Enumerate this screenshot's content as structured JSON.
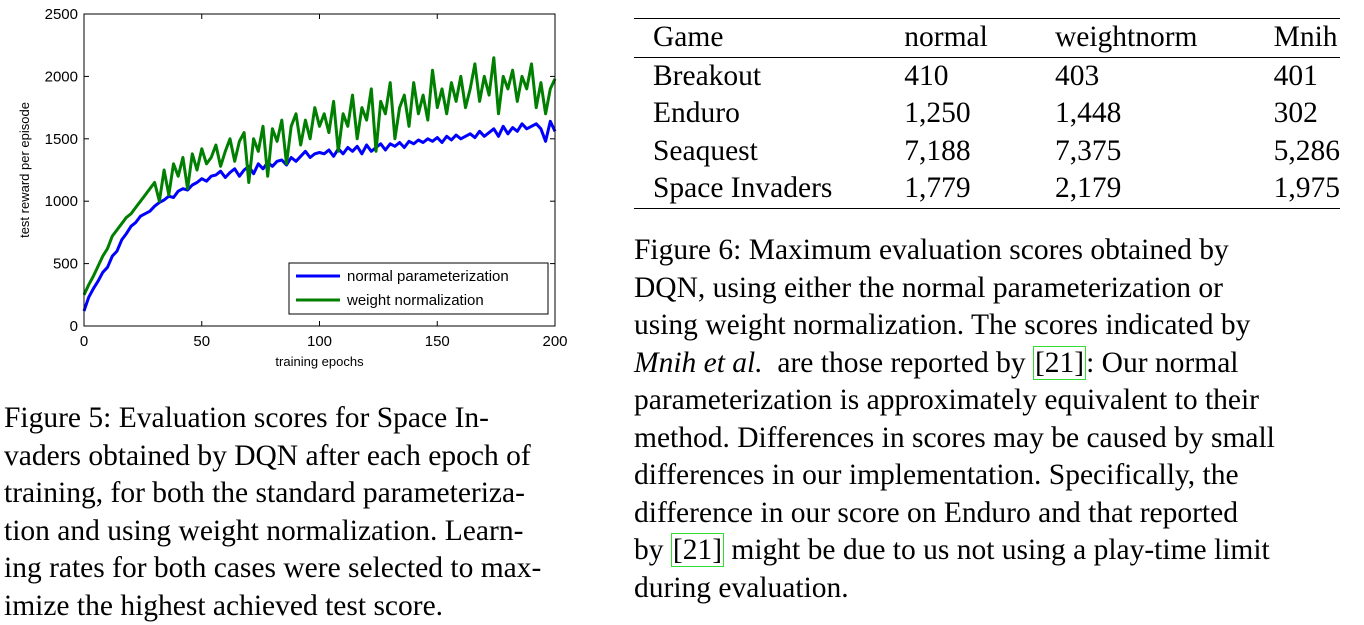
{
  "chart_data": {
    "type": "line",
    "xlabel": "training epochs",
    "ylabel": "test reward per episode",
    "xlim": [
      0,
      200
    ],
    "ylim": [
      0,
      2500
    ],
    "xticks": [
      "0",
      "50",
      "100",
      "150",
      "200"
    ],
    "yticks": [
      "0",
      "500",
      "1000",
      "1500",
      "2000",
      "2500"
    ],
    "legend_position": "bottom-right",
    "grid": false,
    "series": [
      {
        "name": "normal parameterization",
        "color": "#0000ff",
        "x": [
          0,
          2,
          4,
          6,
          8,
          10,
          12,
          14,
          16,
          18,
          20,
          22,
          24,
          26,
          28,
          30,
          32,
          34,
          36,
          38,
          40,
          42,
          44,
          46,
          48,
          50,
          52,
          54,
          56,
          58,
          60,
          62,
          64,
          66,
          68,
          70,
          72,
          74,
          76,
          78,
          80,
          82,
          84,
          86,
          88,
          90,
          92,
          94,
          96,
          98,
          100,
          102,
          104,
          106,
          108,
          110,
          112,
          114,
          116,
          118,
          120,
          122,
          124,
          126,
          128,
          130,
          132,
          134,
          136,
          138,
          140,
          142,
          144,
          146,
          148,
          150,
          152,
          154,
          156,
          158,
          160,
          162,
          164,
          166,
          168,
          170,
          172,
          174,
          176,
          178,
          180,
          182,
          184,
          186,
          188,
          190,
          192,
          194,
          196,
          198,
          200
        ],
        "values": [
          120,
          230,
          300,
          360,
          430,
          470,
          560,
          600,
          690,
          740,
          800,
          830,
          880,
          900,
          920,
          960,
          990,
          1010,
          1040,
          1030,
          1080,
          1100,
          1090,
          1130,
          1150,
          1180,
          1160,
          1200,
          1210,
          1240,
          1190,
          1230,
          1260,
          1200,
          1250,
          1280,
          1220,
          1300,
          1260,
          1310,
          1280,
          1320,
          1330,
          1290,
          1350,
          1320,
          1360,
          1400,
          1350,
          1380,
          1390,
          1380,
          1410,
          1360,
          1420,
          1380,
          1430,
          1400,
          1440,
          1380,
          1450,
          1400,
          1430,
          1460,
          1410,
          1460,
          1440,
          1470,
          1430,
          1480,
          1460,
          1490,
          1470,
          1500,
          1480,
          1510,
          1470,
          1520,
          1490,
          1530,
          1500,
          1520,
          1540,
          1510,
          1560,
          1520,
          1550,
          1580,
          1520,
          1600,
          1540,
          1590,
          1560,
          1620,
          1580,
          1600,
          1620,
          1580,
          1480,
          1640,
          1560
        ]
      },
      {
        "name": "weight normalization",
        "color": "#007f00",
        "x": [
          0,
          2,
          4,
          6,
          8,
          10,
          12,
          14,
          16,
          18,
          20,
          22,
          24,
          26,
          28,
          30,
          32,
          34,
          36,
          38,
          40,
          42,
          44,
          46,
          48,
          50,
          52,
          54,
          56,
          58,
          60,
          62,
          64,
          66,
          68,
          70,
          72,
          74,
          76,
          78,
          80,
          82,
          84,
          86,
          88,
          90,
          92,
          94,
          96,
          98,
          100,
          102,
          104,
          106,
          108,
          110,
          112,
          114,
          116,
          118,
          120,
          122,
          124,
          126,
          128,
          130,
          132,
          134,
          136,
          138,
          140,
          142,
          144,
          146,
          148,
          150,
          152,
          154,
          156,
          158,
          160,
          162,
          164,
          166,
          168,
          170,
          172,
          174,
          176,
          178,
          180,
          182,
          184,
          186,
          188,
          190,
          192,
          194,
          196,
          198,
          200
        ],
        "values": [
          250,
          330,
          400,
          480,
          560,
          620,
          720,
          770,
          820,
          870,
          900,
          950,
          1000,
          1050,
          1100,
          1150,
          1000,
          1250,
          1050,
          1300,
          1200,
          1350,
          1100,
          1380,
          1250,
          1420,
          1300,
          1350,
          1450,
          1280,
          1400,
          1500,
          1320,
          1480,
          1550,
          1150,
          1500,
          1400,
          1600,
          1200,
          1580,
          1480,
          1650,
          1300,
          1600,
          1700,
          1450,
          1650,
          1500,
          1750,
          1600,
          1700,
          1550,
          1800,
          1400,
          1700,
          1600,
          1850,
          1500,
          1750,
          1650,
          1900,
          1400,
          1800,
          1700,
          1950,
          1500,
          1750,
          1850,
          1600,
          1950,
          1700,
          1850,
          1650,
          2050,
          1750,
          1900,
          1700,
          1950,
          1800,
          2000,
          1750,
          1900,
          2100,
          1800,
          2000,
          1850,
          2150,
          1700,
          2000,
          1900,
          2050,
          1800,
          2000,
          1900,
          2100,
          1750,
          1950,
          1700,
          1900,
          1980
        ]
      }
    ]
  },
  "figure5_caption": {
    "lines": [
      "Figure 5: Evaluation scores for Space In-",
      "vaders obtained by DQN after each epoch of",
      "training, for both the standard parameteriza-",
      "tion and using weight normalization. Learn-",
      "ing rates for both cases were selected to max-",
      "imize the highest achieved test score."
    ]
  },
  "table": {
    "headers": [
      "Game",
      "normal",
      "weightnorm",
      "Mnih"
    ],
    "rows": [
      [
        "Breakout",
        "410",
        "403",
        "401"
      ],
      [
        "Enduro",
        "1,250",
        "1,448",
        "302"
      ],
      [
        "Seaquest",
        "7,188",
        "7,375",
        "5,286"
      ],
      [
        "Space Invaders",
        "1,779",
        "2,179",
        "1,975"
      ]
    ]
  },
  "figure6_caption": {
    "l1": "Figure 6: Maximum evaluation scores obtained by",
    "l2": "DQN, using either the normal parameterization or",
    "l3": "using weight normalization. The scores indicated by",
    "l4_italic": "Mnih et al.",
    "l4_mid": "  are those reported by ",
    "ref": "[21]",
    "l4_end": ": Our normal",
    "l5": "parameterization is approximately equivalent to their",
    "l6": "method. Differences in scores may be caused by small",
    "l7": "differences in our implementation. Specifically, the",
    "l8": "difference in our score on Enduro and that reported",
    "l9_start": "by ",
    "l9_end": " might be due to us not using a play-time limit",
    "l10": "during evaluation."
  }
}
